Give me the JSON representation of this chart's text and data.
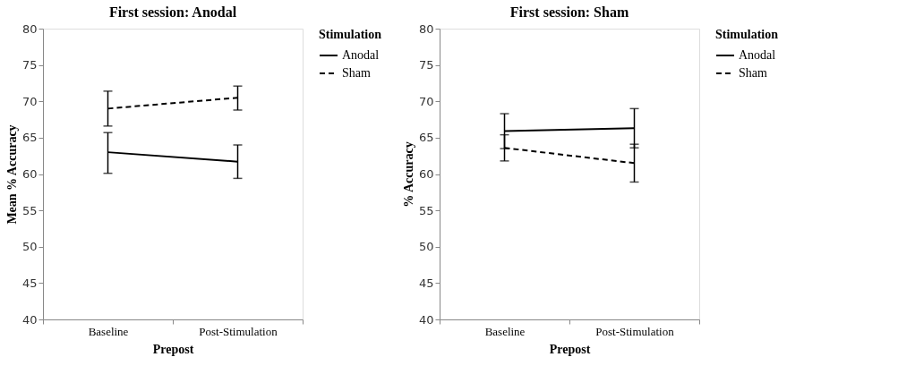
{
  "chart_data": [
    {
      "type": "line",
      "title": "First session: Anodal",
      "xlabel": "Prepost",
      "ylabel": "Mean % Accuracy",
      "legend_title": "Stimulation",
      "categories": [
        "Baseline",
        "Post-Stimulation"
      ],
      "series": [
        {
          "name": "Anodal",
          "color": "#000000",
          "line_style": "solid",
          "values": [
            63.0,
            61.7
          ],
          "errors": [
            [
              60.1,
              65.7
            ],
            [
              59.4,
              64.0
            ]
          ]
        },
        {
          "name": "Sham",
          "color": "#000000",
          "line_style": "dashed",
          "values": [
            69.0,
            70.5
          ],
          "errors": [
            [
              66.6,
              71.4
            ],
            [
              68.8,
              72.1
            ]
          ]
        }
      ],
      "ylim": [
        40,
        80
      ],
      "yticks": [
        40,
        45,
        50,
        55,
        60,
        65,
        70,
        75,
        80
      ],
      "grid": false,
      "legend": "top right",
      "marker": "none"
    },
    {
      "type": "line",
      "title": "First session: Sham",
      "xlabel": "Prepost",
      "ylabel": "% Accuracy",
      "legend_title": "Stimulation",
      "categories": [
        "Baseline",
        "Post-Stimulation"
      ],
      "series": [
        {
          "name": "Anodal",
          "color": "#000000",
          "line_style": "solid",
          "values": [
            65.9,
            66.3
          ],
          "errors": [
            [
              63.5,
              68.3
            ],
            [
              63.6,
              69.0
            ]
          ]
        },
        {
          "name": "Sham",
          "color": "#000000",
          "line_style": "dashed",
          "values": [
            63.6,
            61.5
          ],
          "errors": [
            [
              61.8,
              65.4
            ],
            [
              58.9,
              64.1
            ]
          ]
        }
      ],
      "ylim": [
        40,
        80
      ],
      "yticks": [
        40,
        45,
        50,
        55,
        60,
        65,
        70,
        75,
        80
      ],
      "grid": false,
      "legend": "top right",
      "marker": "none"
    }
  ]
}
